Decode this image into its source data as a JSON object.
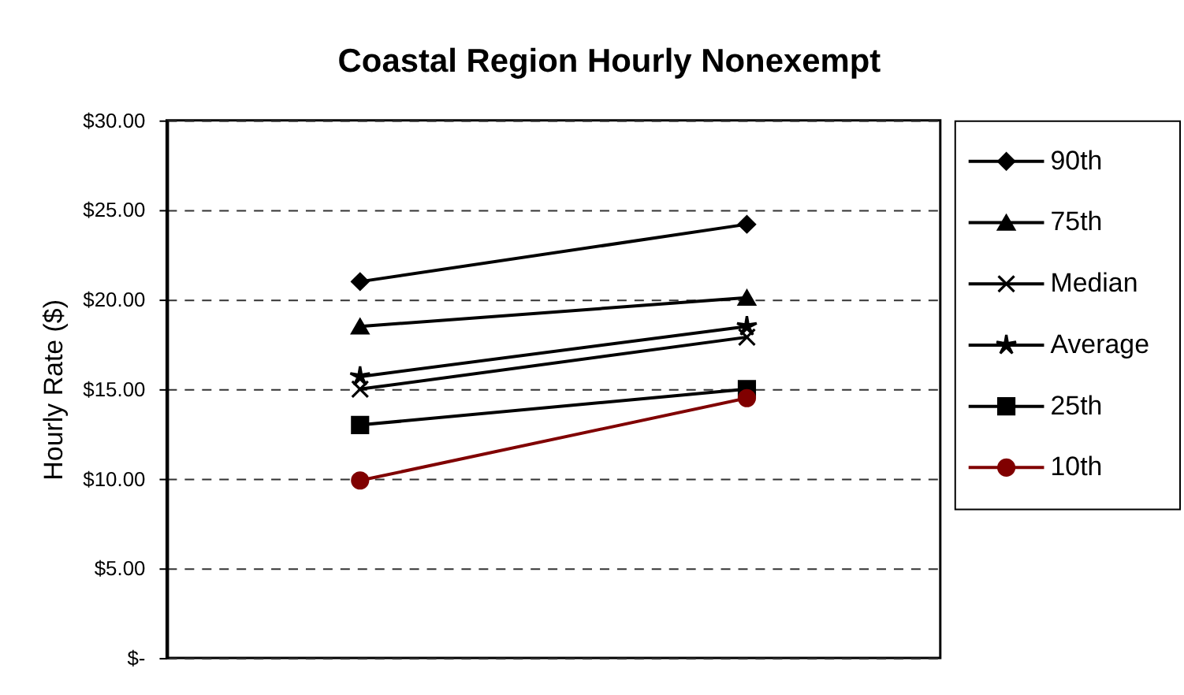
{
  "chart_data": {
    "type": "line",
    "title": "Coastal Region Hourly Nonexempt",
    "ylabel": "Hourly Rate ($)",
    "categories": [
      null,
      null
    ],
    "series": [
      {
        "name": "90th",
        "color": "#000000",
        "marker": "diamond",
        "values": [
          21.0,
          24.2
        ]
      },
      {
        "name": "75th",
        "color": "#000000",
        "marker": "triangle",
        "values": [
          18.5,
          20.1
        ]
      },
      {
        "name": "Median",
        "color": "#000000",
        "marker": "cross",
        "values": [
          15.0,
          17.9
        ]
      },
      {
        "name": "Average",
        "color": "#000000",
        "marker": "star",
        "values": [
          15.7,
          18.5
        ]
      },
      {
        "name": "25th",
        "color": "#000000",
        "marker": "square",
        "values": [
          13.0,
          15.0
        ]
      },
      {
        "name": "10th",
        "color": "#800000",
        "marker": "circle",
        "values": [
          9.9,
          14.5
        ]
      }
    ],
    "ylim": [
      0,
      30
    ],
    "yticks": [
      {
        "value": 0,
        "label": "$-"
      },
      {
        "value": 5,
        "label": "$5.00"
      },
      {
        "value": 10,
        "label": "$10.00"
      },
      {
        "value": 15,
        "label": "$15.00"
      },
      {
        "value": 20,
        "label": "$20.00"
      },
      {
        "value": 25,
        "label": "$25.00"
      },
      {
        "value": 30,
        "label": "$30.00"
      }
    ],
    "grid": "y",
    "legend": "right",
    "tick_labels": "y",
    "line_style": "solid"
  }
}
